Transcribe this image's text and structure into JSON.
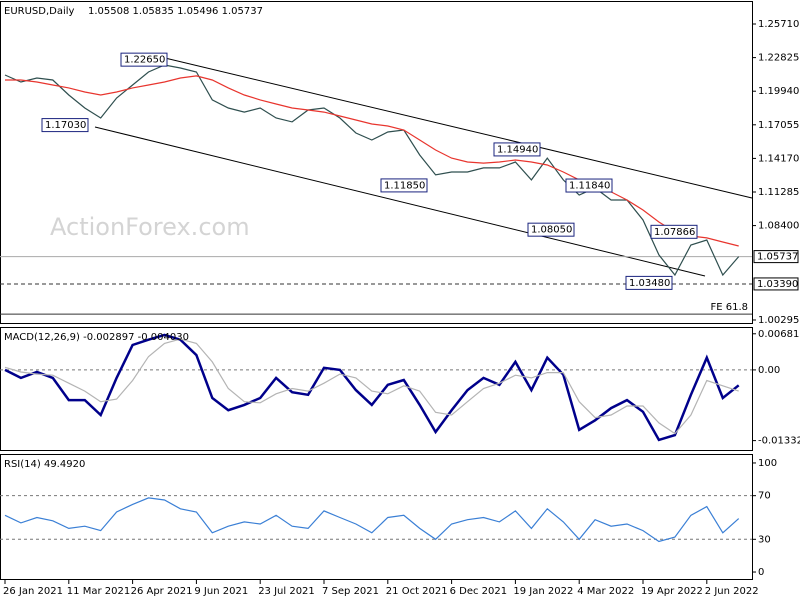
{
  "chart_data": [
    {
      "type": "line",
      "title": "EURUSD,Daily",
      "subtitle": "1.05508 1.05835 1.05496 1.05737",
      "watermark": "ActionForex.com",
      "categories": [
        "26 Jan 2021",
        null,
        null,
        null,
        "11 Mar 2021",
        null,
        null,
        null,
        "26 Apr 2021",
        null,
        null,
        null,
        "9 Jun 2021",
        null,
        null,
        null,
        "23 Jul 2021",
        null,
        null,
        null,
        "7 Sep 2021",
        null,
        null,
        null,
        "21 Oct 2021",
        null,
        null,
        null,
        "6 Dec 2021",
        null,
        null,
        null,
        "19 Jan 2022",
        null,
        null,
        null,
        "4 Mar 2022",
        null,
        null,
        null,
        "19 Apr 2022",
        null,
        null,
        null,
        "2 Jun 2022",
        null,
        null
      ],
      "series": [
        {
          "color": "#2f4f4f",
          "values": [
            1.2133,
            1.2073,
            1.2107,
            1.209,
            1.1961,
            1.185,
            1.1764,
            1.1936,
            1.2047,
            1.2159,
            1.2219,
            1.2193,
            1.2159,
            1.1919,
            1.185,
            1.1815,
            1.185,
            1.1764,
            1.173,
            1.1833,
            1.185,
            1.1764,
            1.1635,
            1.1575,
            1.1644,
            1.1661,
            1.1446,
            1.1275,
            1.13,
            1.13,
            1.1335,
            1.1335,
            1.1386,
            1.1232,
            1.142,
            1.1232,
            1.1103,
            1.1163,
            1.106,
            1.106,
            1.0888,
            1.0588,
            1.0416,
            1.0673,
            1.0716,
            1.0416,
            1.0574
          ]
        },
        {
          "color": "#e8352e",
          "values": [
            1.209,
            1.209,
            1.2073,
            1.2047,
            1.2022,
            1.1987,
            1.1961,
            1.1987,
            1.2022,
            1.2047,
            1.2073,
            1.2107,
            1.2125,
            1.209,
            1.2022,
            1.1961,
            1.1919,
            1.1884,
            1.185,
            1.1833,
            1.1815,
            1.1781,
            1.1747,
            1.1712,
            1.1695,
            1.1661,
            1.1575,
            1.1489,
            1.142,
            1.1386,
            1.1377,
            1.1386,
            1.1403,
            1.1386,
            1.136,
            1.13,
            1.1232,
            1.1189,
            1.1129,
            1.106,
            1.0974,
            1.0871,
            1.0785,
            1.0751,
            1.0734,
            1.0699,
            1.0665
          ]
        }
      ],
      "ylim": [
        0.9995,
        1.276
      ],
      "yticks": [
        {
          "value": 1.2571,
          "label": "1.25710"
        },
        1.22825,
        {
          "value": 1.1994,
          "label": "1.19940"
        },
        1.17055,
        {
          "value": 1.1417,
          "label": "1.14170"
        },
        1.11285,
        {
          "value": 1.084,
          "label": "1.08400"
        },
        1.00295
      ],
      "hlines": [
        {
          "value": 1.05737,
          "label": "1.05737"
        },
        {
          "value": 1.0339,
          "label": "1.03390",
          "dashed": true
        }
      ],
      "fe_level": 1.008,
      "fe_label": "FE 61.8",
      "annotations": [
        {
          "value": 1.2265,
          "label": "1.22650"
        },
        {
          "value": 1.1703,
          "label": "1.17030"
        },
        {
          "value": 1.1185,
          "label": "1.11850"
        },
        {
          "value": 1.1494,
          "label": "1.14940"
        },
        {
          "value": 1.1184,
          "label": "1.11840"
        },
        {
          "value": 1.0805,
          "label": "1.08050"
        },
        {
          "value": 1.07866,
          "label": "1.07866"
        },
        {
          "value": 1.0348,
          "label": "1.03480"
        }
      ]
    },
    {
      "type": "line",
      "title": "MACD(12,26,9) -0.002897 -0.004030",
      "series": [
        {
          "color": "#00008b",
          "values": [
            0,
            -0.0015,
            -0.0004,
            -0.0015,
            -0.0057,
            -0.0057,
            -0.0085,
            -0.0015,
            0.0047,
            0.0057,
            0.0066,
            0.0057,
            0.0028,
            -0.0053,
            -0.0076,
            -0.0066,
            -0.0053,
            -0.0015,
            -0.0042,
            -0.0047,
            0.0004,
            0,
            -0.0038,
            -0.0066,
            -0.0028,
            -0.0019,
            -0.0066,
            -0.0117,
            -0.0076,
            -0.0038,
            -0.0015,
            -0.0028,
            0.0015,
            -0.0038,
            0.0023,
            -0.0009,
            -0.0113,
            -0.0095,
            -0.0072,
            -0.0057,
            -0.0079,
            -0.0132,
            -0.0123,
            -0.0047,
            0.0023,
            -0.0053,
            -0.0029
          ]
        },
        {
          "color": "#b4b4b4",
          "values": [
            0.0005,
            -0.0004,
            -0.0008,
            -0.001,
            -0.0025,
            -0.004,
            -0.006,
            -0.0055,
            -0.002,
            0.0025,
            0.005,
            0.0058,
            0.005,
            0.0015,
            -0.0035,
            -0.006,
            -0.0062,
            -0.0045,
            -0.0035,
            -0.004,
            -0.0025,
            -0.0008,
            -0.0015,
            -0.004,
            -0.0045,
            -0.003,
            -0.004,
            -0.008,
            -0.0085,
            -0.006,
            -0.0035,
            -0.0025,
            -0.001,
            -0.0015,
            -0.0005,
            -0.0005,
            -0.006,
            -0.009,
            -0.0085,
            -0.0068,
            -0.0068,
            -0.01,
            -0.012,
            -0.0085,
            -0.002,
            -0.003,
            -0.004
          ]
        }
      ],
      "ylim": [
        -0.0151,
        0.0079
      ],
      "yticks": [
        0.00681,
        {
          "value": 0,
          "label": "0.00"
        },
        -0.013329
      ],
      "levels": [
        0
      ]
    },
    {
      "type": "line",
      "title": "RSI(14) 49.4920",
      "series": [
        {
          "color": "#3a7fd5",
          "values": [
            52,
            45,
            50,
            47,
            40,
            42,
            38,
            55,
            62,
            68,
            66,
            58,
            55,
            36,
            42,
            46,
            44,
            52,
            42,
            40,
            56,
            50,
            44,
            36,
            50,
            52,
            40,
            30,
            44,
            48,
            50,
            46,
            56,
            40,
            58,
            46,
            30,
            48,
            42,
            44,
            38,
            28,
            32,
            52,
            60,
            36,
            49
          ]
        }
      ],
      "ylim": [
        -6.4,
        107.3
      ],
      "yticks": [
        100,
        70,
        30,
        0
      ],
      "levels": [
        70,
        30
      ]
    }
  ]
}
